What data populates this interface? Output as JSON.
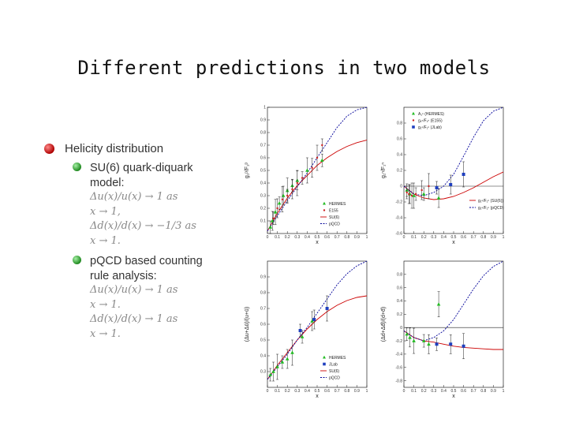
{
  "slide": {
    "title": "Different predictions in two models"
  },
  "bullets": {
    "main": "Helicity distribution",
    "sub1": {
      "lines": [
        "SU(6) quark-diquark",
        "model:",
        "Δu(x)/u(x) → 1 as",
        "x → 1,",
        "Δd(x)/d(x) → −1/3 as",
        "x → 1."
      ]
    },
    "sub2": {
      "lines": [
        "pQCD based counting",
        "rule analysis:",
        "Δu(x)/u(x) → 1 as",
        "x → 1.",
        "Δd(x)/d(x) → 1 as",
        "x → 1."
      ]
    }
  },
  "colors": {
    "red_curve": "#cc0000",
    "blue_curve": "#000099",
    "green_marker": "#22bb22",
    "blue_marker": "#1f3fbf"
  },
  "chart_data": [
    {
      "type": "scatter",
      "ylabel": "g₁ᵖ/F₁ᵖ",
      "xlabel": "x",
      "xlim": [
        0,
        1
      ],
      "ylim": [
        0,
        1
      ],
      "xticks": [
        "0",
        "0.1",
        "0.2",
        "0.3",
        "0.4",
        "0.5",
        "0.6",
        "0.7",
        "0.8",
        "0.9",
        "1"
      ],
      "yticks": [
        "0.1",
        "0.2",
        "0.3",
        "0.4",
        "0.5",
        "0.6",
        "0.7",
        "0.8",
        "0.9",
        "1"
      ],
      "legend": [
        "HERMES",
        "E155",
        "SU(6)",
        "pQCD"
      ],
      "legend_position": "bottom-right",
      "series": [
        {
          "name": "HERMES",
          "marker": "triangle",
          "x": [
            0.03,
            0.05,
            0.08,
            0.12,
            0.16,
            0.2,
            0.25,
            0.3,
            0.4,
            0.55
          ],
          "y": [
            0.05,
            0.1,
            0.17,
            0.24,
            0.3,
            0.34,
            0.38,
            0.42,
            0.5,
            0.58
          ]
        },
        {
          "name": "E155",
          "marker": "point",
          "x": [
            0.06,
            0.1,
            0.15,
            0.2,
            0.25,
            0.3,
            0.35,
            0.45,
            0.5,
            0.55
          ],
          "y": [
            0.12,
            0.2,
            0.27,
            0.3,
            0.35,
            0.4,
            0.44,
            0.52,
            0.6,
            0.7
          ]
        }
      ],
      "curves": [
        {
          "name": "SU(6)",
          "style": "solid",
          "x": [
            0,
            0.1,
            0.2,
            0.3,
            0.4,
            0.5,
            0.6,
            0.7,
            0.8,
            0.9,
            1
          ],
          "y": [
            0.02,
            0.16,
            0.28,
            0.38,
            0.46,
            0.54,
            0.6,
            0.65,
            0.69,
            0.72,
            0.74
          ]
        },
        {
          "name": "pQCD",
          "style": "dashed",
          "x": [
            0,
            0.1,
            0.2,
            0.3,
            0.4,
            0.5,
            0.6,
            0.7,
            0.8,
            0.9,
            1
          ],
          "y": [
            0.02,
            0.14,
            0.26,
            0.37,
            0.48,
            0.6,
            0.72,
            0.84,
            0.93,
            0.98,
            1.0
          ]
        }
      ]
    },
    {
      "type": "scatter",
      "ylabel": "g₁ⁿ/F₁ⁿ",
      "xlabel": "x",
      "xlim": [
        0,
        1
      ],
      "ylim": [
        -0.6,
        1
      ],
      "xticks": [
        "0",
        "0.1",
        "0.2",
        "0.3",
        "0.4",
        "0.5",
        "0.6",
        "0.7",
        "0.8",
        "0.9",
        "1"
      ],
      "yticks": [
        "-0.6",
        "-0.4",
        "-0.2",
        "0",
        "0.2",
        "0.4",
        "0.6",
        "0.8"
      ],
      "legend": [
        "A₁ⁿ (HERMES)",
        "g₁ⁿ/F₁ⁿ (E155)",
        "g₁ⁿ/F₁ⁿ (JLab)",
        "g₁ⁿ/F₁ⁿ (SU(6))",
        "g₁ⁿ/F₁ⁿ (pQCD)"
      ],
      "legend_position": "top-left / bottom-right",
      "series": [
        {
          "name": "A₁ⁿ (HERMES)",
          "marker": "triangle",
          "x": [
            0.03,
            0.06,
            0.1,
            0.2,
            0.35
          ],
          "y": [
            -0.05,
            -0.1,
            -0.12,
            -0.1,
            -0.15
          ]
        },
        {
          "name": "g₁ⁿ/F₁ⁿ (E155)",
          "marker": "point",
          "x": [
            0.03,
            0.05,
            0.08,
            0.12,
            0.18,
            0.25
          ],
          "y": [
            -0.08,
            -0.1,
            -0.12,
            -0.1,
            -0.05,
            0.0
          ]
        },
        {
          "name": "g₁ⁿ/F₁ⁿ (JLab)",
          "marker": "square",
          "x": [
            0.33,
            0.47,
            0.6
          ],
          "y": [
            -0.02,
            0.02,
            0.15
          ]
        }
      ],
      "curves": [
        {
          "name": "g₁ⁿ/F₁ⁿ (SU(6))",
          "style": "solid",
          "x": [
            0,
            0.1,
            0.2,
            0.3,
            0.4,
            0.5,
            0.6,
            0.7,
            0.8,
            0.9,
            1
          ],
          "y": [
            0.0,
            -0.1,
            -0.15,
            -0.17,
            -0.16,
            -0.13,
            -0.08,
            -0.02,
            0.05,
            0.12,
            0.18
          ]
        },
        {
          "name": "g₁ⁿ/F₁ⁿ (pQCD)",
          "style": "dashed",
          "x": [
            0,
            0.1,
            0.2,
            0.3,
            0.4,
            0.5,
            0.6,
            0.7,
            0.8,
            0.9,
            1
          ],
          "y": [
            0.0,
            -0.1,
            -0.12,
            -0.08,
            0.0,
            0.15,
            0.38,
            0.62,
            0.83,
            0.95,
            1.0
          ]
        }
      ]
    },
    {
      "type": "scatter",
      "ylabel": "(Δu+Δū)/(u+ū)",
      "xlabel": "x",
      "xlim": [
        0,
        1
      ],
      "ylim": [
        0.2,
        1
      ],
      "xticks": [
        "0",
        "0.1",
        "0.2",
        "0.3",
        "0.4",
        "0.5",
        "0.6",
        "0.7",
        "0.8",
        "0.9",
        "1"
      ],
      "yticks": [
        "0.3",
        "0.4",
        "0.5",
        "0.6",
        "0.7",
        "0.8",
        "0.9"
      ],
      "legend": [
        "HERMES",
        "JLab",
        "SU(6)",
        "pQCD"
      ],
      "legend_position": "bottom-right",
      "series": [
        {
          "name": "HERMES",
          "marker": "triangle",
          "x": [
            0.03,
            0.06,
            0.1,
            0.15,
            0.2,
            0.25,
            0.35,
            0.45
          ],
          "y": [
            0.28,
            0.3,
            0.33,
            0.36,
            0.38,
            0.42,
            0.52,
            0.62
          ]
        },
        {
          "name": "JLab",
          "marker": "square",
          "x": [
            0.33,
            0.47,
            0.6
          ],
          "y": [
            0.56,
            0.63,
            0.7
          ]
        }
      ],
      "curves": [
        {
          "name": "SU(6)",
          "style": "solid",
          "x": [
            0,
            0.1,
            0.2,
            0.3,
            0.4,
            0.5,
            0.6,
            0.7,
            0.8,
            0.9,
            1
          ],
          "y": [
            0.25,
            0.34,
            0.42,
            0.5,
            0.57,
            0.63,
            0.68,
            0.72,
            0.75,
            0.77,
            0.78
          ]
        },
        {
          "name": "pQCD",
          "style": "dashed",
          "x": [
            0,
            0.1,
            0.2,
            0.3,
            0.4,
            0.5,
            0.6,
            0.7,
            0.8,
            0.9,
            1
          ],
          "y": [
            0.25,
            0.33,
            0.41,
            0.5,
            0.58,
            0.67,
            0.76,
            0.85,
            0.92,
            0.97,
            1.0
          ]
        }
      ]
    },
    {
      "type": "scatter",
      "ylabel": "(Δd+Δd̄)/(d+d̄)",
      "xlabel": "x",
      "xlim": [
        0,
        1
      ],
      "ylim": [
        -0.9,
        1
      ],
      "xticks": [
        "0",
        "0.1",
        "0.2",
        "0.3",
        "0.4",
        "0.5",
        "0.6",
        "0.7",
        "0.8",
        "0.9",
        "1"
      ],
      "yticks": [
        "-0.8",
        "-0.6",
        "-0.4",
        "-0.2",
        "0",
        "0.2",
        "0.4",
        "0.6",
        "0.8"
      ],
      "series": [
        {
          "name": "HERMES",
          "marker": "triangle",
          "x": [
            0.03,
            0.06,
            0.1,
            0.2,
            0.25,
            0.35
          ],
          "y": [
            -0.1,
            -0.15,
            -0.2,
            -0.2,
            -0.25,
            0.35
          ]
        },
        {
          "name": "JLab",
          "marker": "square",
          "x": [
            0.33,
            0.47,
            0.6
          ],
          "y": [
            -0.25,
            -0.25,
            -0.28
          ]
        }
      ],
      "curves": [
        {
          "name": "SU(6)",
          "style": "solid",
          "x": [
            0,
            0.1,
            0.2,
            0.3,
            0.4,
            0.5,
            0.6,
            0.7,
            0.8,
            0.9,
            1
          ],
          "y": [
            -0.05,
            -0.15,
            -0.2,
            -0.22,
            -0.25,
            -0.28,
            -0.3,
            -0.31,
            -0.32,
            -0.33,
            -0.33
          ]
        },
        {
          "name": "pQCD",
          "style": "dashed",
          "x": [
            0,
            0.1,
            0.2,
            0.3,
            0.4,
            0.5,
            0.6,
            0.7,
            0.8,
            0.9,
            1
          ],
          "y": [
            -0.05,
            -0.15,
            -0.2,
            -0.15,
            -0.05,
            0.12,
            0.35,
            0.58,
            0.78,
            0.92,
            1.0
          ]
        }
      ]
    }
  ]
}
